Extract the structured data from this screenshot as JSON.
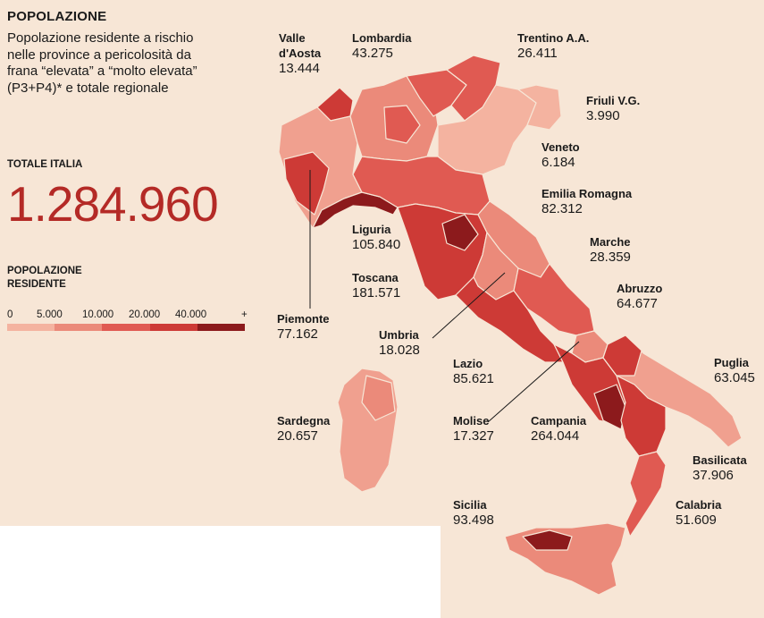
{
  "title": "POPOLAZIONE",
  "subtitle": "Popolazione residente a rischio nelle province a pericolosità da frana “elevata” a “molto elevata” (P3+P4)* e totale regionale",
  "total": {
    "label": "TOTALE ITALIA",
    "value": "1.284.960"
  },
  "legend": {
    "title": "POPOLAZIONE RESIDENTE",
    "ticks": [
      "0",
      "5.000",
      "10.000",
      "20.000",
      "40.000",
      "+"
    ],
    "colors": [
      "#f4b3a0",
      "#eb8a7a",
      "#e05a52",
      "#cd3a36",
      "#8c1a1c"
    ]
  },
  "regions": [
    {
      "name": "Valle\nd'Aosta",
      "value": "13.444"
    },
    {
      "name": "Lombardia",
      "value": "43.275"
    },
    {
      "name": "Trentino A.A.",
      "value": "26.411"
    },
    {
      "name": "Friuli V.G.",
      "value": "3.990"
    },
    {
      "name": "Veneto",
      "value": "6.184"
    },
    {
      "name": "Emilia Romagna",
      "value": "82.312"
    },
    {
      "name": "Liguria",
      "value": "105.840"
    },
    {
      "name": "Marche",
      "value": "28.359"
    },
    {
      "name": "Toscana",
      "value": "181.571"
    },
    {
      "name": "Abruzzo",
      "value": "64.677"
    },
    {
      "name": "Piemonte",
      "value": "77.162"
    },
    {
      "name": "Umbria",
      "value": "18.028"
    },
    {
      "name": "Lazio",
      "value": "85.621"
    },
    {
      "name": "Puglia",
      "value": "63.045"
    },
    {
      "name": "Sardegna",
      "value": "20.657"
    },
    {
      "name": "Molise",
      "value": "17.327"
    },
    {
      "name": "Campania",
      "value": "264.044"
    },
    {
      "name": "Basilicata",
      "value": "37.906"
    },
    {
      "name": "Sicilia",
      "value": "93.498"
    },
    {
      "name": "Calabria",
      "value": "51.609"
    }
  ]
}
